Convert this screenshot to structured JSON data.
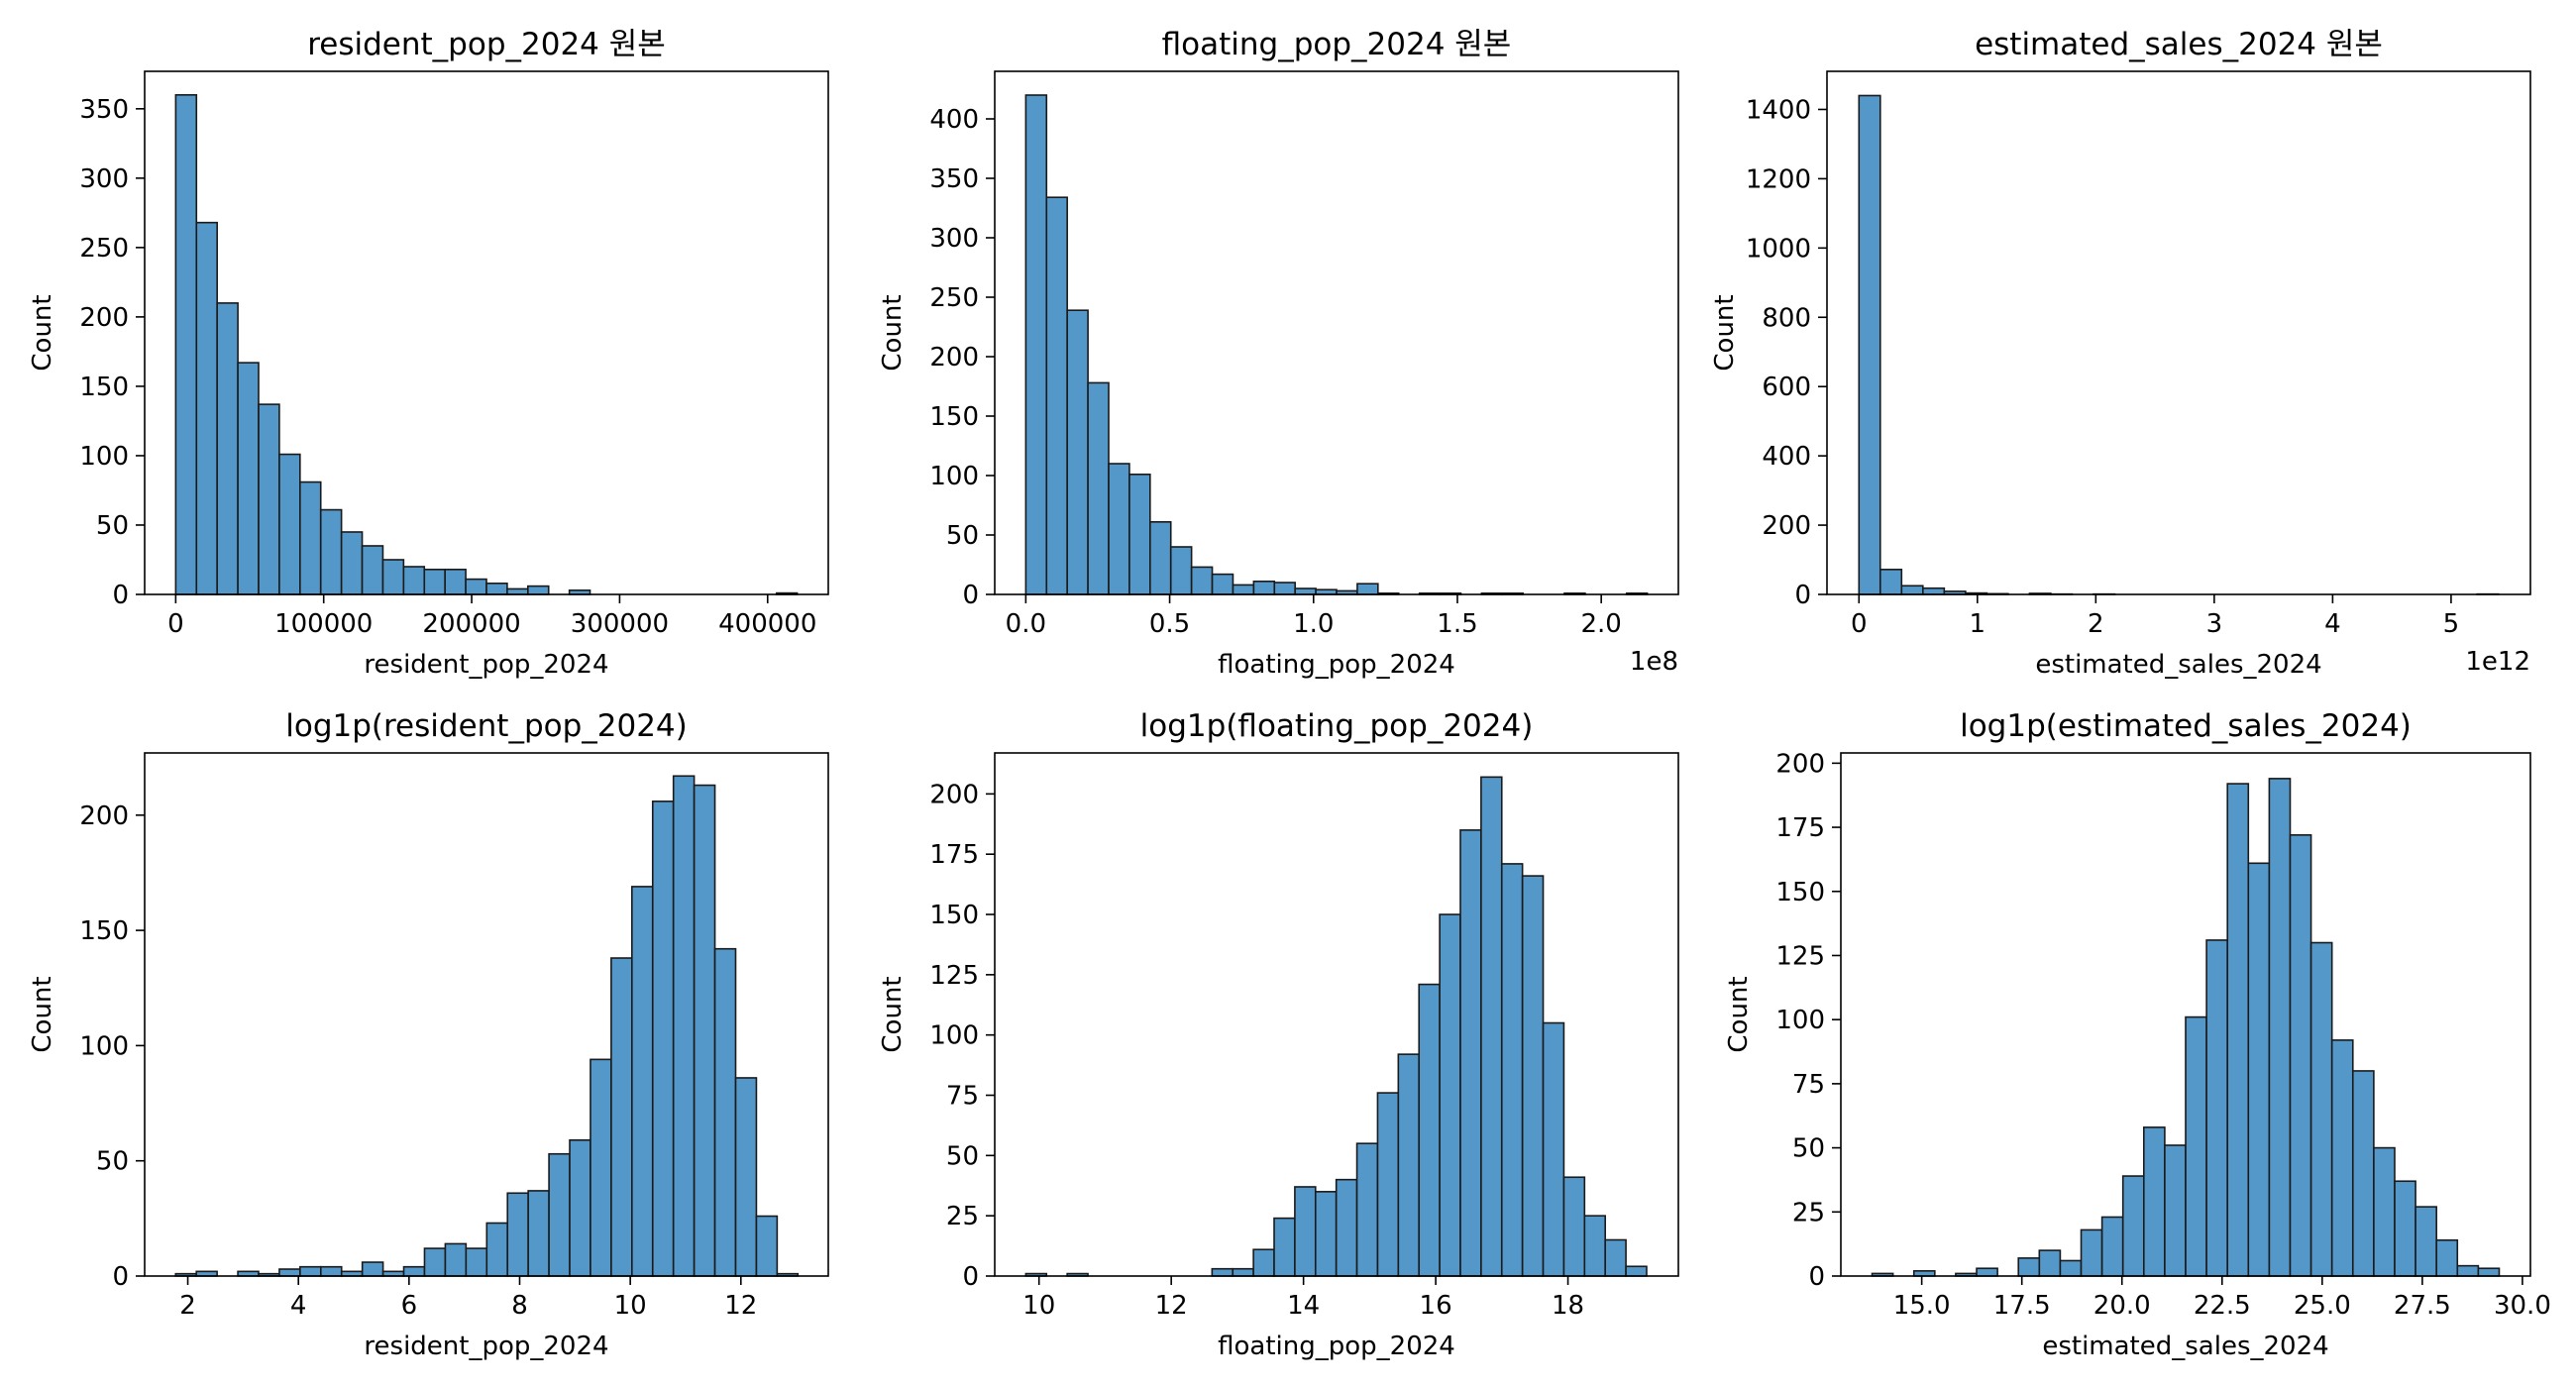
{
  "chart_data": [
    {
      "type": "histogram",
      "title": "resident_pop_2024 원본",
      "xlabel": "resident_pop_2024",
      "ylabel": "Count",
      "xlim": [
        -21000,
        441000
      ],
      "ylim": [
        0,
        377
      ],
      "xticks": [
        0,
        100000,
        200000,
        300000,
        400000
      ],
      "xtick_labels": [
        "0",
        "100000",
        "200000",
        "300000",
        "400000"
      ],
      "yticks": [
        0,
        50,
        100,
        150,
        200,
        250,
        300,
        350
      ],
      "x_offset": "",
      "bin_start": 0,
      "bin_width": 14000,
      "counts": [
        360,
        268,
        210,
        167,
        137,
        101,
        81,
        61,
        45,
        35,
        25,
        20,
        18,
        18,
        11,
        8,
        4,
        6,
        0,
        3,
        0,
        0,
        0,
        0,
        0,
        0,
        0,
        0,
        0,
        1
      ]
    },
    {
      "type": "histogram",
      "title": "floating_pop_2024 원본",
      "xlabel": "floating_pop_2024",
      "ylabel": "Count",
      "xlim": [
        -0.108,
        2.268
      ],
      "ylim": [
        0,
        440
      ],
      "xticks": [
        0.0,
        0.5,
        1.0,
        1.5,
        2.0
      ],
      "xtick_labels": [
        "0.0",
        "0.5",
        "1.0",
        "1.5",
        "2.0"
      ],
      "yticks": [
        0,
        50,
        100,
        150,
        200,
        250,
        300,
        350,
        400
      ],
      "x_offset": "1e8",
      "bin_start": 0,
      "bin_width": 0.072,
      "counts": [
        420,
        334,
        239,
        178,
        110,
        101,
        61,
        40,
        23,
        17,
        8,
        11,
        10,
        5,
        4,
        3,
        9,
        1,
        0,
        1,
        1,
        0,
        1,
        1,
        0,
        0,
        1,
        0,
        0,
        1
      ]
    },
    {
      "type": "histogram",
      "title": "estimated_sales_2024 원본",
      "xlabel": "estimated_sales_2024",
      "ylabel": "Count",
      "xlim": [
        -0.27,
        5.67
      ],
      "ylim": [
        0,
        1510
      ],
      "xticks": [
        0,
        1,
        2,
        3,
        4,
        5
      ],
      "xtick_labels": [
        "0",
        "1",
        "2",
        "3",
        "4",
        "5"
      ],
      "yticks": [
        0,
        200,
        400,
        600,
        800,
        1000,
        1200,
        1400
      ],
      "x_offset": "1e12",
      "bin_start": 0,
      "bin_width": 0.18,
      "counts": [
        1440,
        72,
        25,
        18,
        9,
        4,
        2,
        0,
        3,
        1,
        0,
        1,
        0,
        0,
        0,
        0,
        0,
        0,
        0,
        0,
        0,
        0,
        0,
        0,
        0,
        0,
        0,
        0,
        0,
        1
      ]
    },
    {
      "type": "histogram",
      "title": "log1p(resident_pop_2024)",
      "xlabel": "resident_pop_2024",
      "ylabel": "Count",
      "xlim": [
        1.22,
        13.58
      ],
      "ylim": [
        0,
        227
      ],
      "xticks": [
        2,
        4,
        6,
        8,
        10,
        12
      ],
      "xtick_labels": [
        "2",
        "4",
        "6",
        "8",
        "10",
        "12"
      ],
      "yticks": [
        0,
        50,
        100,
        150,
        200
      ],
      "x_offset": "",
      "bin_start": 1.78,
      "bin_width": 0.375,
      "counts": [
        1,
        2,
        0,
        2,
        1,
        3,
        4,
        4,
        2,
        6,
        2,
        4,
        12,
        14,
        12,
        23,
        36,
        37,
        53,
        59,
        94,
        138,
        169,
        206,
        217,
        213,
        142,
        86,
        26,
        1
      ]
    },
    {
      "type": "histogram",
      "title": "log1p(floating_pop_2024)",
      "xlabel": "floating_pop_2024",
      "ylabel": "Count",
      "xlim": [
        9.33,
        19.67
      ],
      "ylim": [
        0,
        217
      ],
      "xticks": [
        10,
        12,
        14,
        16,
        18
      ],
      "xtick_labels": [
        "10",
        "12",
        "14",
        "16",
        "18"
      ],
      "yticks": [
        0,
        25,
        50,
        75,
        100,
        125,
        150,
        175,
        200
      ],
      "x_offset": "",
      "bin_start": 9.8,
      "bin_width": 0.313,
      "counts": [
        1,
        0,
        1,
        0,
        0,
        0,
        0,
        0,
        0,
        3,
        3,
        11,
        24,
        37,
        35,
        40,
        55,
        76,
        92,
        121,
        150,
        185,
        207,
        171,
        166,
        105,
        41,
        25,
        15,
        4
      ]
    },
    {
      "type": "histogram",
      "title": "log1p(estimated_sales_2024)",
      "xlabel": "estimated_sales_2024",
      "ylabel": "Count",
      "xlim": [
        12.98,
        30.2
      ],
      "ylim": [
        0,
        204
      ],
      "xticks": [
        15.0,
        17.5,
        20.0,
        22.5,
        25.0,
        27.5,
        30.0
      ],
      "xtick_labels": [
        "15.0",
        "17.5",
        "20.0",
        "22.5",
        "25.0",
        "27.5",
        "30.0"
      ],
      "yticks": [
        0,
        25,
        50,
        75,
        100,
        125,
        150,
        175,
        200
      ],
      "x_offset": "",
      "bin_start": 13.76,
      "bin_width": 0.522,
      "counts": [
        1,
        0,
        2,
        0,
        1,
        3,
        0,
        7,
        10,
        6,
        18,
        23,
        39,
        58,
        51,
        101,
        131,
        192,
        161,
        194,
        172,
        130,
        92,
        80,
        50,
        37,
        27,
        14,
        4,
        3
      ]
    }
  ],
  "colors": {
    "bar_fill": "#5497c9",
    "bar_edge": "#1a1a1a"
  }
}
